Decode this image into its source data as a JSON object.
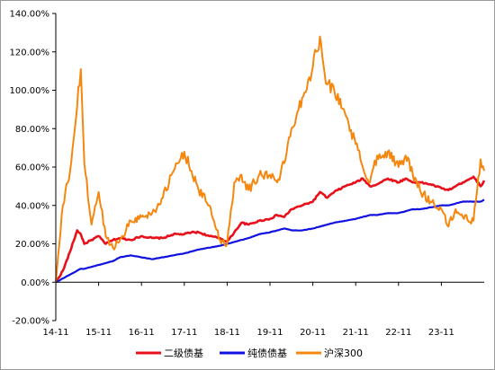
{
  "chart_data": {
    "type": "line",
    "title": "",
    "xlabel": "",
    "ylabel": "",
    "ylim": [
      -0.2,
      1.4
    ],
    "y_ticks": [
      -0.2,
      0.0,
      0.2,
      0.4,
      0.6,
      0.8,
      1.0,
      1.2,
      1.4
    ],
    "y_tick_labels": [
      "-20.00%",
      "0.00%",
      "20.00%",
      "40.00%",
      "60.00%",
      "80.00%",
      "100.00%",
      "120.00%",
      "140.00%"
    ],
    "x_tick_labels": [
      "14-11",
      "15-11",
      "16-11",
      "17-11",
      "18-11",
      "19-11",
      "20-11",
      "21-11",
      "22-11",
      "23-11"
    ],
    "x_range": [
      "2014-11",
      "2024-11"
    ],
    "grid": false,
    "legend_position": "bottom",
    "x": [
      "2014-11",
      "2015-01",
      "2015-03",
      "2015-05",
      "2015-06",
      "2015-07",
      "2015-09",
      "2015-11",
      "2016-01",
      "2016-03",
      "2016-05",
      "2016-08",
      "2016-11",
      "2017-02",
      "2017-05",
      "2017-08",
      "2017-11",
      "2018-01",
      "2018-03",
      "2018-06",
      "2018-09",
      "2018-11",
      "2019-01",
      "2019-03",
      "2019-05",
      "2019-08",
      "2019-11",
      "2020-01",
      "2020-03",
      "2020-05",
      "2020-08",
      "2020-11",
      "2021-01",
      "2021-03",
      "2021-05",
      "2021-08",
      "2021-11",
      "2022-01",
      "2022-03",
      "2022-05",
      "2022-08",
      "2022-11",
      "2023-01",
      "2023-03",
      "2023-05",
      "2023-08",
      "2023-11",
      "2024-01",
      "2024-03",
      "2024-05",
      "2024-08",
      "2024-10",
      "2024-11"
    ],
    "series": [
      {
        "name": "二级债基",
        "color": "#e8101a",
        "values": [
          0.0,
          0.06,
          0.16,
          0.27,
          0.25,
          0.2,
          0.22,
          0.24,
          0.2,
          0.22,
          0.23,
          0.22,
          0.24,
          0.23,
          0.23,
          0.25,
          0.25,
          0.26,
          0.26,
          0.24,
          0.23,
          0.21,
          0.26,
          0.31,
          0.3,
          0.32,
          0.33,
          0.35,
          0.34,
          0.38,
          0.4,
          0.42,
          0.47,
          0.44,
          0.47,
          0.5,
          0.52,
          0.54,
          0.5,
          0.51,
          0.54,
          0.52,
          0.54,
          0.52,
          0.52,
          0.51,
          0.49,
          0.48,
          0.5,
          0.52,
          0.55,
          0.5,
          0.53
        ]
      },
      {
        "name": "纯债债基",
        "color": "#1010e0",
        "values": [
          0.0,
          0.02,
          0.04,
          0.06,
          0.07,
          0.07,
          0.08,
          0.09,
          0.1,
          0.11,
          0.13,
          0.14,
          0.13,
          0.12,
          0.13,
          0.14,
          0.15,
          0.16,
          0.17,
          0.18,
          0.19,
          0.2,
          0.21,
          0.22,
          0.23,
          0.25,
          0.26,
          0.27,
          0.28,
          0.27,
          0.27,
          0.28,
          0.29,
          0.3,
          0.31,
          0.32,
          0.33,
          0.34,
          0.35,
          0.35,
          0.36,
          0.36,
          0.37,
          0.38,
          0.38,
          0.39,
          0.4,
          0.4,
          0.41,
          0.42,
          0.42,
          0.42,
          0.43
        ]
      },
      {
        "name": "沪深300",
        "color": "#f5870f",
        "values": [
          0.0,
          0.4,
          0.58,
          0.92,
          1.11,
          0.62,
          0.3,
          0.47,
          0.24,
          0.18,
          0.22,
          0.32,
          0.34,
          0.36,
          0.44,
          0.58,
          0.68,
          0.58,
          0.48,
          0.4,
          0.22,
          0.2,
          0.52,
          0.56,
          0.48,
          0.56,
          0.56,
          0.52,
          0.62,
          0.8,
          0.96,
          1.12,
          1.28,
          1.03,
          1.0,
          0.88,
          0.72,
          0.6,
          0.52,
          0.66,
          0.68,
          0.6,
          0.66,
          0.56,
          0.48,
          0.42,
          0.38,
          0.29,
          0.38,
          0.34,
          0.32,
          0.64,
          0.58
        ]
      }
    ]
  }
}
